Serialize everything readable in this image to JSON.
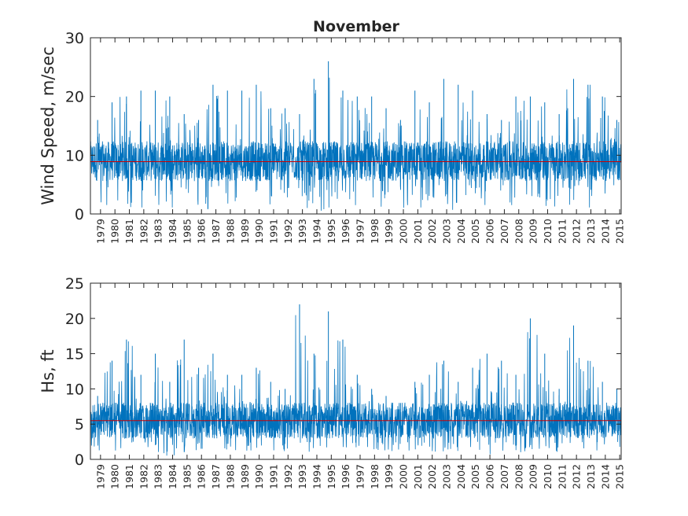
{
  "figure": {
    "title": "November"
  },
  "chart_data": [
    {
      "type": "line",
      "title": "November",
      "xlabel": "",
      "ylabel": "Wind Speed, m/sec",
      "ylim": [
        0,
        30
      ],
      "yticks": [
        0,
        10,
        20,
        30
      ],
      "x_range": [
        1978.8,
        2015.6
      ],
      "x_ticks": [
        "1979",
        "1980",
        "1981",
        "1982",
        "1983",
        "1984",
        "1985",
        "1986",
        "1987",
        "1988",
        "1989",
        "1990",
        "1991",
        "1992",
        "1993",
        "1994",
        "1995",
        "1996",
        "1997",
        "1998",
        "1999",
        "2000",
        "2001",
        "2002",
        "2003",
        "2004",
        "2005",
        "2006",
        "2007",
        "2008",
        "2009",
        "2010",
        "2011",
        "2012",
        "2013",
        "2014",
        "2015"
      ],
      "series_color": "#0072BD",
      "mean_color": "#cc0000",
      "mean": 8.9,
      "typical_range": [
        5,
        13
      ],
      "yearly_peaks": [
        16,
        19,
        20,
        21,
        21,
        20,
        17,
        16,
        22,
        21,
        21,
        22,
        18,
        18,
        17,
        23,
        26,
        21,
        20,
        20,
        18,
        16,
        21,
        19,
        23,
        22,
        21,
        17,
        16,
        20,
        20,
        19,
        17,
        23,
        22,
        20,
        16
      ],
      "yearly_minima": [
        1,
        1,
        1,
        0.5,
        1,
        1,
        1,
        1,
        0.5,
        1,
        1,
        1,
        1,
        1,
        1,
        1,
        0.5,
        1,
        1,
        1,
        1,
        1,
        0.5,
        1,
        1,
        0.5,
        1,
        1,
        1,
        1,
        0.5,
        1,
        1,
        1,
        1,
        0.5,
        1
      ],
      "grid": false
    },
    {
      "type": "line",
      "title": "",
      "xlabel": "",
      "ylabel": "Hs, ft",
      "ylim": [
        0,
        25
      ],
      "yticks": [
        0,
        5,
        10,
        15,
        20,
        25
      ],
      "x_range": [
        1978.8,
        2015.6
      ],
      "x_ticks": [
        "1979",
        "1980",
        "1981",
        "1982",
        "1983",
        "1984",
        "1985",
        "1986",
        "1987",
        "1988",
        "1989",
        "1990",
        "1991",
        "1992",
        "1993",
        "1994",
        "1995",
        "1996",
        "1997",
        "1998",
        "1999",
        "2000",
        "2001",
        "2002",
        "2003",
        "2004",
        "2005",
        "2006",
        "2007",
        "2008",
        "2009",
        "2010",
        "2011",
        "2012",
        "2013",
        "2014",
        "2015"
      ],
      "series_color": "#0072BD",
      "mean_color": "#cc0000",
      "mean": 5.5,
      "typical_range": [
        2.5,
        8.5
      ],
      "yearly_peaks": [
        9,
        14,
        17,
        12,
        15,
        11,
        17,
        13,
        15,
        12,
        12,
        13,
        11,
        10,
        22,
        15,
        21,
        17,
        12,
        10,
        9,
        8,
        11,
        12,
        14,
        11,
        13,
        15,
        14,
        12,
        20,
        15,
        10,
        19,
        14,
        11,
        10
      ],
      "yearly_minima": [
        1,
        1,
        1,
        0.5,
        1,
        0.5,
        1,
        1,
        1,
        1,
        1,
        1,
        1,
        1,
        1,
        1,
        1,
        1,
        1,
        1,
        1,
        1,
        1,
        1,
        1,
        1,
        1,
        0.5,
        1,
        1,
        1,
        1,
        0.5,
        1,
        1,
        0.5,
        1
      ],
      "grid": false
    }
  ]
}
